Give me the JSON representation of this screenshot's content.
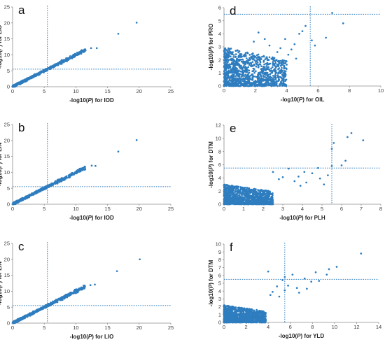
{
  "colors": {
    "point": "#2e7dbf",
    "threshold": "#2e7dbf",
    "axis": "#8c8c8c"
  },
  "chart_data": [
    {
      "panel": "a",
      "type": "scatter",
      "xlabel_prefix": "-log10(",
      "xlabel_italic": "P",
      "xlabel_suffix": ") for IOD",
      "ylabel_prefix": "-log10(",
      "ylabel_italic": "P",
      "ylabel_suffix": ") for LIO",
      "xlim": [
        0,
        25
      ],
      "ylim": [
        0,
        25
      ],
      "xticks": [
        0,
        5,
        10,
        15,
        20,
        25
      ],
      "yticks": [
        0,
        5,
        10,
        15,
        20,
        25
      ],
      "threshold_x": 5.5,
      "threshold_y": 5.5,
      "grid": false,
      "pattern": "diagonal",
      "outliers": [
        [
          16.7,
          16.6
        ],
        [
          19.6,
          20.1
        ],
        [
          13.3,
          12.1
        ],
        [
          12.4,
          12.1
        ]
      ]
    },
    {
      "panel": "b",
      "type": "scatter",
      "xlabel_prefix": "-log10(",
      "xlabel_italic": "P",
      "xlabel_suffix": ") for IOD",
      "ylabel_prefix": "-log10(",
      "ylabel_italic": "P",
      "ylabel_suffix": ") for LIN",
      "xlim": [
        0,
        25
      ],
      "ylim": [
        0,
        25
      ],
      "xticks": [
        0,
        5,
        10,
        15,
        20,
        25
      ],
      "yticks": [
        0,
        5,
        10,
        15,
        20,
        25
      ],
      "threshold_x": 5.5,
      "threshold_y": 5.5,
      "grid": false,
      "pattern": "diagonal",
      "outliers": [
        [
          16.7,
          16.5
        ],
        [
          19.6,
          20.1
        ],
        [
          13.1,
          12.0
        ],
        [
          12.5,
          12.1
        ]
      ]
    },
    {
      "panel": "c",
      "type": "scatter",
      "xlabel_prefix": "-log10(",
      "xlabel_italic": "P",
      "xlabel_suffix": ") for LIO",
      "ylabel_prefix": "-log10(",
      "ylabel_italic": "P",
      "ylabel_suffix": ") for LIN",
      "xlim": [
        0,
        25
      ],
      "ylim": [
        0,
        25
      ],
      "xticks": [
        0,
        5,
        10,
        15,
        20,
        25
      ],
      "yticks": [
        0,
        5,
        10,
        15,
        20,
        25
      ],
      "threshold_x": 5.5,
      "threshold_y": 5.5,
      "grid": false,
      "pattern": "diagonal",
      "outliers": [
        [
          16.5,
          16.3
        ],
        [
          20.1,
          20.0
        ],
        [
          13.0,
          12.1
        ],
        [
          12.3,
          11.9
        ]
      ]
    },
    {
      "panel": "d",
      "type": "scatter",
      "xlabel_prefix": "-log10(",
      "xlabel_italic": "P",
      "xlabel_suffix": ") for OIL",
      "ylabel_prefix": "-log10(",
      "ylabel_italic": "P",
      "ylabel_suffix": ") for PRO",
      "xlim": [
        0,
        10
      ],
      "ylim": [
        0,
        6
      ],
      "xticks": [
        0,
        2,
        4,
        6,
        8,
        10
      ],
      "yticks": [
        0,
        1,
        2,
        3,
        4,
        5,
        6
      ],
      "threshold_x": 5.5,
      "threshold_y": 5.5,
      "grid": false,
      "pattern": "cloud",
      "cloud": {
        "xmax": 4.0,
        "ymax": 3.0
      },
      "outliers": [
        [
          6.9,
          5.6
        ],
        [
          7.6,
          4.8
        ],
        [
          6.5,
          3.7
        ],
        [
          5.2,
          4.6
        ],
        [
          5.0,
          4.2
        ],
        [
          4.8,
          4.0
        ],
        [
          5.6,
          3.5
        ],
        [
          4.5,
          3.2
        ],
        [
          4.3,
          2.8
        ],
        [
          3.9,
          3.6
        ],
        [
          4.1,
          2.4
        ],
        [
          3.6,
          2.9
        ],
        [
          2.9,
          3.1
        ],
        [
          2.6,
          3.6
        ],
        [
          2.2,
          4.1
        ],
        [
          3.4,
          2.6
        ],
        [
          4.6,
          2.1
        ],
        [
          5.8,
          3.1
        ],
        [
          3.1,
          2.2
        ],
        [
          1.9,
          3.4
        ]
      ]
    },
    {
      "panel": "e",
      "type": "scatter",
      "xlabel_prefix": "-log10(",
      "xlabel_italic": "P",
      "xlabel_suffix": ") for PLH",
      "ylabel_prefix": "-log10(",
      "ylabel_italic": "P",
      "ylabel_suffix": ") for DTM",
      "xlim": [
        0,
        8
      ],
      "ylim": [
        0,
        12
      ],
      "xticks": [
        0,
        1,
        2,
        3,
        4,
        5,
        6,
        7,
        8
      ],
      "yticks": [
        0,
        2,
        4,
        6,
        8,
        10,
        12
      ],
      "threshold_x": 5.5,
      "threshold_y": 5.5,
      "grid": false,
      "pattern": "cloud",
      "cloud": {
        "xmax": 2.5,
        "ymax": 3.0
      },
      "outliers": [
        [
          6.5,
          10.8
        ],
        [
          6.3,
          10.2
        ],
        [
          7.1,
          9.7
        ],
        [
          5.6,
          9.3
        ],
        [
          5.5,
          8.4
        ],
        [
          6.2,
          6.6
        ],
        [
          6.0,
          5.9
        ],
        [
          5.5,
          5.8
        ],
        [
          4.8,
          5.5
        ],
        [
          3.3,
          5.4
        ],
        [
          4.1,
          4.9
        ],
        [
          4.5,
          4.7
        ],
        [
          2.5,
          4.9
        ],
        [
          3.8,
          4.2
        ],
        [
          4.9,
          3.9
        ],
        [
          3.0,
          4.1
        ],
        [
          4.2,
          3.3
        ],
        [
          5.1,
          3.0
        ],
        [
          3.6,
          3.5
        ],
        [
          2.8,
          3.8
        ],
        [
          5.3,
          4.4
        ],
        [
          3.9,
          2.8
        ]
      ]
    },
    {
      "panel": "f",
      "type": "scatter",
      "xlabel_prefix": "-log10(",
      "xlabel_italic": "P",
      "xlabel_suffix": ") for YLD",
      "ylabel_prefix": "-log10(",
      "ylabel_italic": "P",
      "ylabel_suffix": ") for DTM",
      "xlim": [
        0,
        14
      ],
      "ylim": [
        0,
        10
      ],
      "xticks": [
        0,
        2,
        4,
        6,
        8,
        10,
        12,
        14
      ],
      "yticks": [
        0,
        1,
        2,
        3,
        4,
        5,
        6,
        7,
        8,
        9,
        10
      ],
      "threshold_x": 5.5,
      "threshold_y": 5.5,
      "grid": false,
      "pattern": "cloud",
      "cloud": {
        "xmax": 3.8,
        "ymax": 2.2
      },
      "outliers": [
        [
          12.4,
          8.8
        ],
        [
          10.2,
          7.1
        ],
        [
          9.5,
          6.8
        ],
        [
          8.3,
          6.4
        ],
        [
          4.0,
          6.5
        ],
        [
          6.2,
          6.1
        ],
        [
          5.5,
          5.8
        ],
        [
          5.3,
          5.4
        ],
        [
          7.3,
          5.6
        ],
        [
          7.9,
          5.2
        ],
        [
          5.8,
          4.7
        ],
        [
          6.6,
          4.4
        ],
        [
          4.8,
          4.6
        ],
        [
          8.6,
          5.3
        ],
        [
          9.3,
          6.1
        ],
        [
          4.4,
          3.9
        ],
        [
          6.8,
          3.8
        ],
        [
          5.5,
          4.1
        ],
        [
          4.2,
          3.5
        ],
        [
          7.5,
          4.3
        ],
        [
          5.0,
          3.3
        ]
      ]
    }
  ]
}
